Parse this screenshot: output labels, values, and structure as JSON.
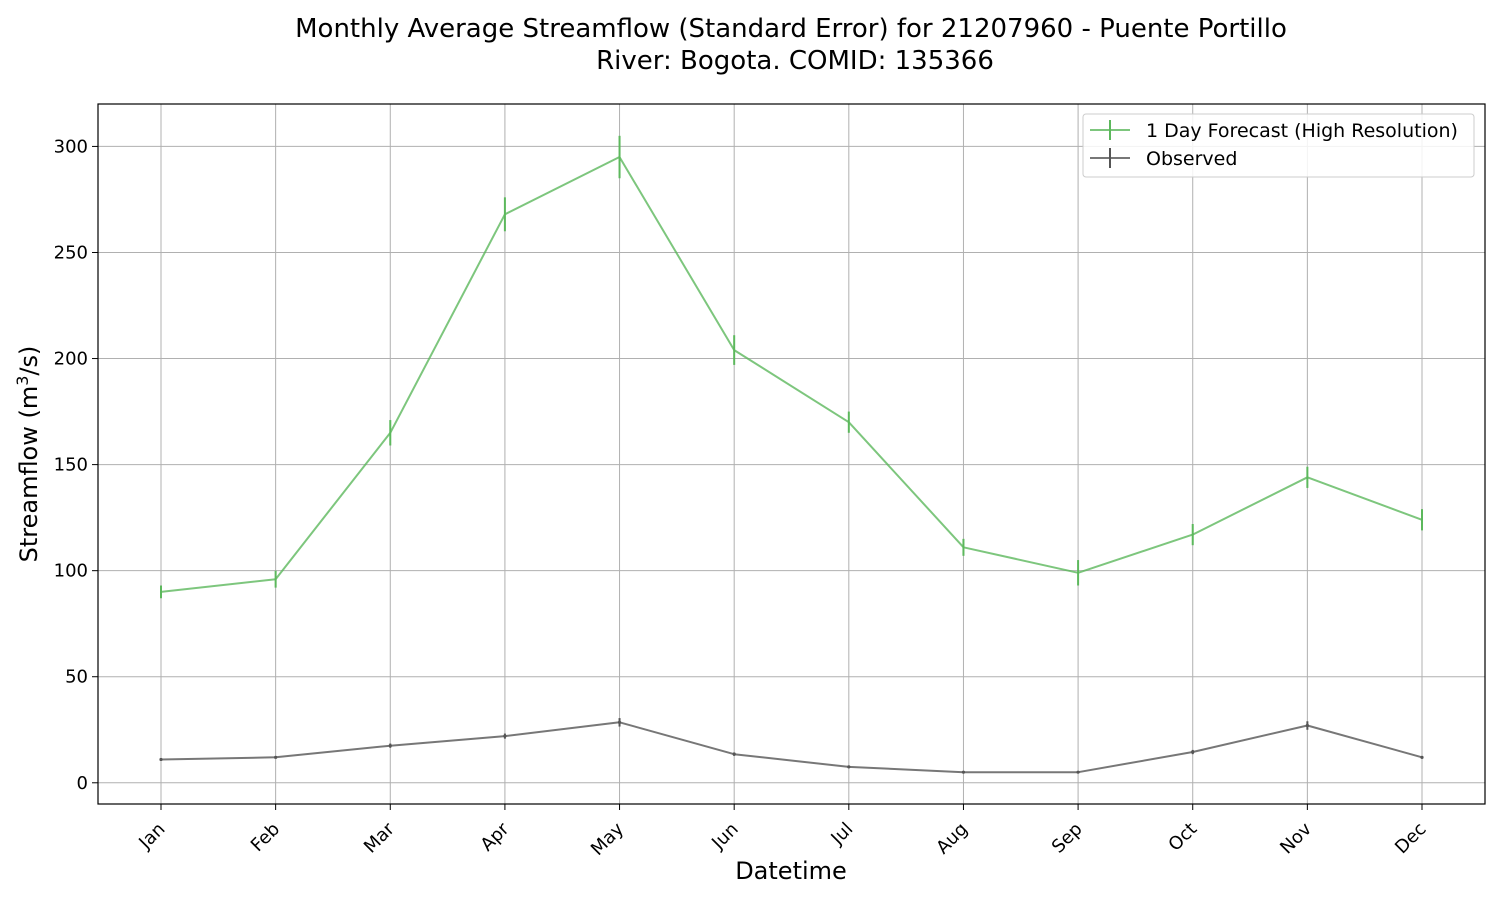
{
  "chart_data": {
    "type": "line",
    "title": "Monthly Average Streamflow (Standard Error) for 21207960 - Puente Portillo",
    "subtitle": "River: Bogota. COMID: 135366",
    "xlabel": "Datetime",
    "ylabel_main": "Streamflow (m",
    "ylabel_sup": "3",
    "ylabel_tail": "/s)",
    "categories": [
      "Jan",
      "Feb",
      "Mar",
      "Apr",
      "May",
      "Jun",
      "Jul",
      "Aug",
      "Sep",
      "Oct",
      "Nov",
      "Dec"
    ],
    "ylim": [
      -10,
      320
    ],
    "yticks": [
      0,
      50,
      100,
      150,
      200,
      250,
      300
    ],
    "grid": true,
    "legend_position": "top-right",
    "series": [
      {
        "name": "1 Day Forecast (High Resolution)",
        "color": "#5cb85c",
        "values": [
          90,
          96,
          165,
          268,
          295,
          204,
          170,
          111,
          99,
          117,
          144,
          124
        ],
        "errors": [
          3,
          4,
          6,
          8,
          10,
          7,
          5,
          4,
          6,
          5,
          5,
          5
        ]
      },
      {
        "name": "Observed",
        "color": "#555555",
        "values": [
          11,
          12,
          17.5,
          22,
          28.5,
          13.5,
          7.5,
          5,
          5,
          14.5,
          27,
          12
        ],
        "errors": [
          0.5,
          0.5,
          1,
          1.2,
          2,
          0.8,
          0.5,
          0.4,
          0.4,
          1,
          2,
          0.6
        ]
      }
    ]
  }
}
